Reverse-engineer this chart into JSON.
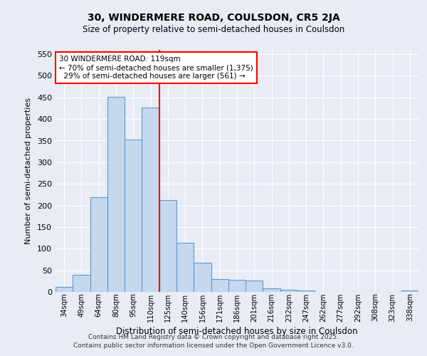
{
  "title1": "30, WINDERMERE ROAD, COULSDON, CR5 2JA",
  "title2": "Size of property relative to semi-detached houses in Coulsdon",
  "xlabel": "Distribution of semi-detached houses by size in Coulsdon",
  "ylabel": "Number of semi-detached properties",
  "categories": [
    "34sqm",
    "49sqm",
    "64sqm",
    "80sqm",
    "95sqm",
    "110sqm",
    "125sqm",
    "140sqm",
    "156sqm",
    "171sqm",
    "186sqm",
    "201sqm",
    "216sqm",
    "232sqm",
    "247sqm",
    "262sqm",
    "277sqm",
    "292sqm",
    "308sqm",
    "323sqm",
    "338sqm"
  ],
  "values": [
    12,
    39,
    219,
    452,
    352,
    427,
    213,
    113,
    68,
    29,
    28,
    27,
    9,
    5,
    3,
    0,
    0,
    0,
    0,
    0,
    4
  ],
  "bar_color": "#c5d8ed",
  "bar_edge_color": "#5b9bd5",
  "vline_x": 5.5,
  "vline_color": "red",
  "annotation_text": "30 WINDERMERE ROAD: 119sqm\n← 70% of semi-detached houses are smaller (1,375)\n  29% of semi-detached houses are larger (561) →",
  "ylim": [
    0,
    560
  ],
  "yticks": [
    0,
    50,
    100,
    150,
    200,
    250,
    300,
    350,
    400,
    450,
    500,
    550
  ],
  "bg_color": "#e8edf5",
  "footer1": "Contains HM Land Registry data © Crown copyright and database right 2025.",
  "footer2": "Contains public sector information licensed under the Open Government Licence v3.0."
}
